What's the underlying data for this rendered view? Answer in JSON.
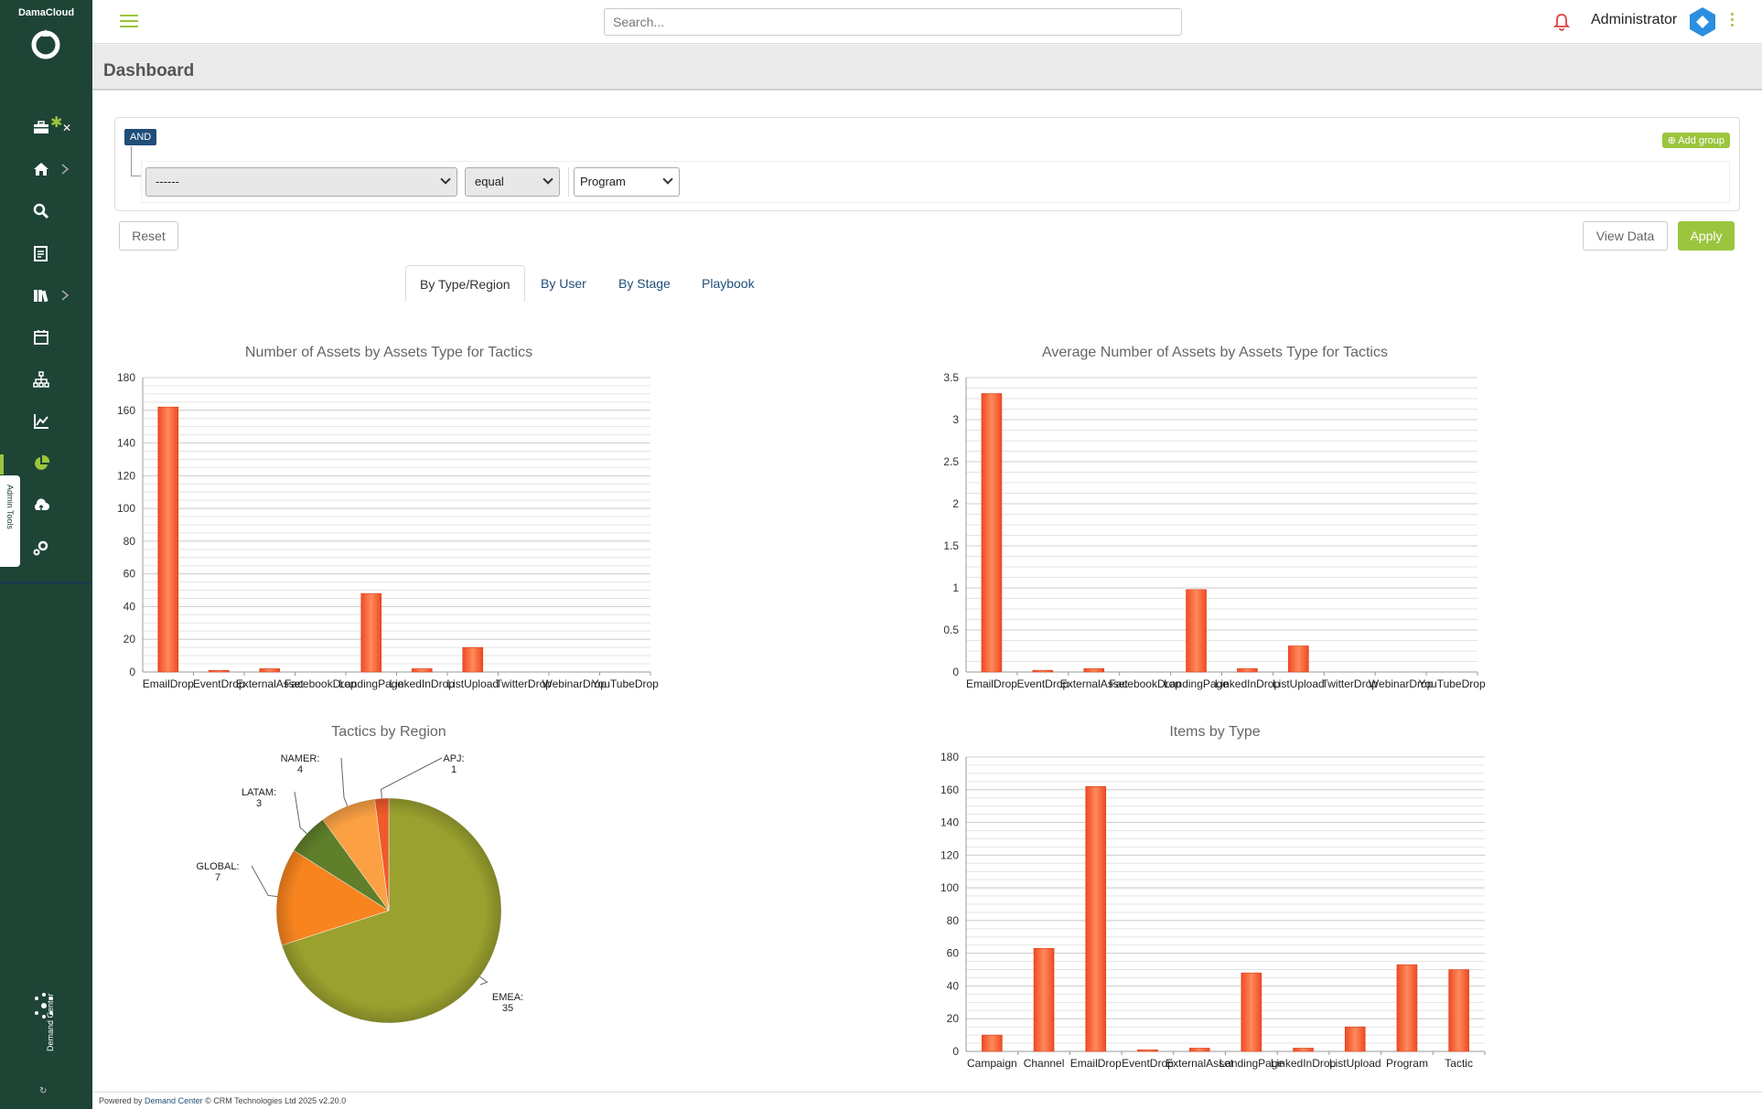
{
  "app": {
    "brand": "DamaCloud"
  },
  "topbar": {
    "search_placeholder": "Search...",
    "user_name": "Administrator"
  },
  "page": {
    "title": "Dashboard"
  },
  "sidebar": {
    "admin_tab_label": "Admin Tools",
    "footer_brand": "Demand Center",
    "items": [
      {
        "icon": "toolbox-icon"
      },
      {
        "icon": "home-icon"
      },
      {
        "icon": "search-icon"
      },
      {
        "icon": "document-icon"
      },
      {
        "icon": "library-icon"
      },
      {
        "icon": "calendar-icon"
      },
      {
        "icon": "org-chart-icon"
      },
      {
        "icon": "line-chart-icon"
      },
      {
        "icon": "pie-chart-icon"
      },
      {
        "icon": "cloud-icon"
      },
      {
        "icon": "settings-icon"
      }
    ]
  },
  "query_builder": {
    "condition": "AND",
    "add_group_label": "Add group",
    "field_value": "------",
    "operator_value": "equal",
    "value_value": "Program"
  },
  "actions": {
    "reset": "Reset",
    "view_data": "View Data",
    "apply": "Apply"
  },
  "tabs": [
    {
      "label": "By Type/Region",
      "active": true
    },
    {
      "label": "By User",
      "active": false
    },
    {
      "label": "By Stage",
      "active": false
    },
    {
      "label": "Playbook",
      "active": false
    }
  ],
  "footer": {
    "powered_by": "Powered by",
    "link": "Demand Center",
    "copyright": "© CRM Technologies Ltd 2025 v2.20.0"
  },
  "colors": {
    "sidebar": "#1e4436",
    "accent": "#9bc53d",
    "bar": "#f4623a",
    "pie": [
      "#9aa12e",
      "#f7841f",
      "#5f7f2b",
      "#fba144",
      "#f05a28"
    ]
  },
  "chart_data": [
    {
      "type": "bar",
      "title": "Number of Assets by Assets Type for Tactics",
      "categories": [
        "EmailDrop",
        "EventDrop",
        "ExternalAsset",
        "FacebookDrop",
        "LandingPage",
        "LinkedInDrop",
        "ListUpload",
        "TwitterDrop",
        "WebinarDrop",
        "YouTubeDrop"
      ],
      "values": [
        162,
        1,
        2,
        0,
        48,
        2,
        15,
        0,
        0,
        0
      ],
      "ylim": [
        0,
        180
      ],
      "yticks": [
        0,
        20,
        40,
        60,
        80,
        100,
        120,
        140,
        160,
        180
      ],
      "grid": true
    },
    {
      "type": "bar",
      "title": "Average Number of Assets by Assets Type for Tactics",
      "categories": [
        "EmailDrop",
        "EventDrop",
        "ExternalAsset",
        "FacebookDrop",
        "LandingPage",
        "LinkedInDrop",
        "ListUpload",
        "TwitterDrop",
        "WebinarDrop",
        "YouTubeDrop"
      ],
      "values": [
        3.31,
        0.02,
        0.04,
        0,
        0.98,
        0.04,
        0.31,
        0,
        0,
        0
      ],
      "ylim": [
        0,
        3.5
      ],
      "yticks": [
        0,
        0.5,
        1,
        1.5,
        2,
        2.5,
        3,
        3.5
      ],
      "grid": true
    },
    {
      "type": "pie",
      "title": "Tactics by Region",
      "slices": [
        {
          "label": "EMEA:",
          "value": 35
        },
        {
          "label": "GLOBAL:",
          "value": 7
        },
        {
          "label": "LATAM:",
          "value": 3
        },
        {
          "label": "NAMER:",
          "value": 4
        },
        {
          "label": "APJ:",
          "value": 1
        }
      ]
    },
    {
      "type": "bar",
      "title": "Items by Type",
      "categories": [
        "Campaign",
        "Channel",
        "EmailDrop",
        "EventDrop",
        "ExternalAsset",
        "LandingPage",
        "LinkedInDrop",
        "ListUpload",
        "Program",
        "Tactic"
      ],
      "values": [
        10,
        63,
        162,
        1,
        2,
        48,
        2,
        15,
        53,
        50
      ],
      "ylim": [
        0,
        180
      ],
      "yticks": [
        0,
        20,
        40,
        60,
        80,
        100,
        120,
        140,
        160,
        180
      ],
      "grid": true
    }
  ]
}
